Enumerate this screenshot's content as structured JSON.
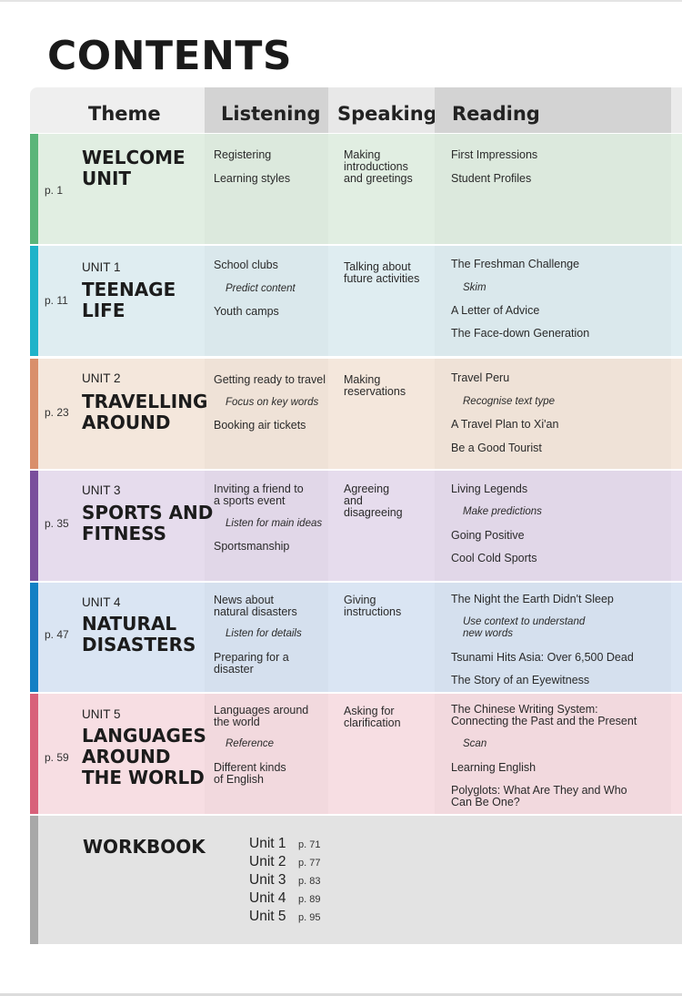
{
  "title": "CONTENTS",
  "headers": {
    "theme": "Theme",
    "listening": "Listening",
    "speaking": "Speaking",
    "reading": "Reading"
  },
  "units": [
    {
      "page": "p. 1",
      "label": "",
      "title": "WELCOME\nUNIT",
      "color": "#5bb57a",
      "bg": "#dce9dd",
      "listening": [
        {
          "text": "Registering"
        },
        {
          "text": "Learning styles"
        }
      ],
      "speaking": [
        {
          "text": "Making\nintroductions\nand greetings"
        }
      ],
      "reading": [
        {
          "text": "First Impressions"
        },
        {
          "text": "Student Profiles"
        }
      ]
    },
    {
      "page": "p. 11",
      "label": "UNIT 1",
      "title": "TEENAGE\nLIFE",
      "color": "#1fb3c9",
      "bg": "#dae8ec",
      "listening": [
        {
          "text": "School clubs"
        },
        {
          "text": "Predict content",
          "sub": true
        },
        {
          "text": "Youth camps"
        }
      ],
      "speaking": [
        {
          "text": "Talking about\nfuture activities"
        }
      ],
      "reading": [
        {
          "text": "The Freshman Challenge"
        },
        {
          "text": "Skim",
          "sub": true
        },
        {
          "text": "A Letter of Advice"
        },
        {
          "text": "The Face-down Generation"
        }
      ]
    },
    {
      "page": "p. 23",
      "label": "UNIT 2",
      "title": "TRAVELLING\nAROUND",
      "color": "#d98f6b",
      "bg": "#efe2d7",
      "listening": [
        {
          "text": "Getting ready to travel"
        },
        {
          "text": "Focus on key words",
          "sub": true
        },
        {
          "text": "Booking air tickets"
        }
      ],
      "speaking": [
        {
          "text": "Making\nreservations"
        }
      ],
      "reading": [
        {
          "text": "Travel Peru"
        },
        {
          "text": "Recognise text type",
          "sub": true
        },
        {
          "text": "A Travel Plan to Xi'an"
        },
        {
          "text": "Be a Good Tourist"
        }
      ]
    },
    {
      "page": "p. 35",
      "label": "UNIT 3",
      "title": "SPORTS AND\nFITNESS",
      "color": "#7a4f9c",
      "bg": "#e1d7e8",
      "listening": [
        {
          "text": "Inviting a friend to\na sports event"
        },
        {
          "text": "Listen for main ideas",
          "sub": true
        },
        {
          "text": "Sportsmanship"
        }
      ],
      "speaking": [
        {
          "text": "Agreeing\nand\ndisagreeing"
        }
      ],
      "reading": [
        {
          "text": "Living Legends"
        },
        {
          "text": "Make predictions",
          "sub": true
        },
        {
          "text": "Going Positive"
        },
        {
          "text": "Cool Cold Sports"
        }
      ]
    },
    {
      "page": "p. 47",
      "label": "UNIT 4",
      "title": "NATURAL\nDISASTERS",
      "color": "#1380c4",
      "bg": "#d5e0ee",
      "listening": [
        {
          "text": "News about\nnatural disasters"
        },
        {
          "text": "Listen for details",
          "sub": true
        },
        {
          "text": "Preparing for a\ndisaster"
        }
      ],
      "speaking": [
        {
          "text": "Giving\ninstructions"
        }
      ],
      "reading": [
        {
          "text": "The Night the Earth Didn't Sleep"
        },
        {
          "text": "Use context to understand\nnew words",
          "sub": true
        },
        {
          "text": "Tsunami Hits Asia: Over 6,500 Dead"
        },
        {
          "text": "The Story of an Eyewitness"
        }
      ]
    },
    {
      "page": "p. 59",
      "label": "UNIT 5",
      "title": "LANGUAGES\nAROUND\nTHE WORLD",
      "color": "#d8617a",
      "bg": "#f2d9de",
      "listening": [
        {
          "text": "Languages around\nthe world"
        },
        {
          "text": "Reference",
          "sub": true
        },
        {
          "text": "Different kinds\nof English"
        }
      ],
      "speaking": [
        {
          "text": "Asking for\nclarification"
        }
      ],
      "reading": [
        {
          "text": "The Chinese Writing System:\nConnecting the Past and the Present"
        },
        {
          "text": "Scan",
          "sub": true
        },
        {
          "text": "Learning English"
        },
        {
          "text": "Polyglots: What Are They and Who\nCan Be One?"
        }
      ]
    }
  ],
  "workbook": {
    "title": "WORKBOOK",
    "color": "#a8a8a8",
    "bg": "#e3e3e3",
    "entries": [
      {
        "unit": "Unit 1",
        "page": "p. 71"
      },
      {
        "unit": "Unit 2",
        "page": "p. 77"
      },
      {
        "unit": "Unit 3",
        "page": "p. 83"
      },
      {
        "unit": "Unit 4",
        "page": "p. 89"
      },
      {
        "unit": "Unit 5",
        "page": "p. 95"
      }
    ]
  }
}
